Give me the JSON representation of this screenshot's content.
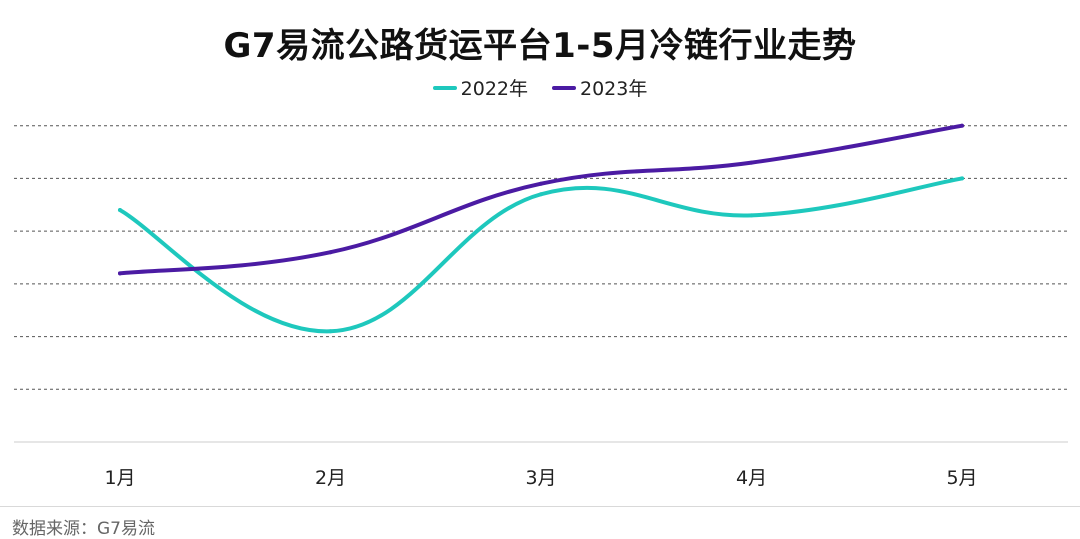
{
  "chart_data": {
    "type": "line",
    "title": "G7易流公路货运平台1-5月冷链行业走势",
    "categories": [
      "1月",
      "2月",
      "3月",
      "4月",
      "5月"
    ],
    "series": [
      {
        "name": "2022年",
        "values": [
          4.4,
          2.1,
          4.7,
          4.3,
          5.0
        ],
        "color": "#1ec8bd"
      },
      {
        "name": "2023年",
        "values": [
          3.2,
          3.6,
          4.9,
          5.3,
          6.0
        ],
        "color": "#4b1ba3"
      }
    ],
    "ylim": [
      0,
      7
    ],
    "grid": true,
    "legend_position": "top-center",
    "xlabel": "",
    "ylabel": ""
  },
  "source": "数据来源：G7易流"
}
